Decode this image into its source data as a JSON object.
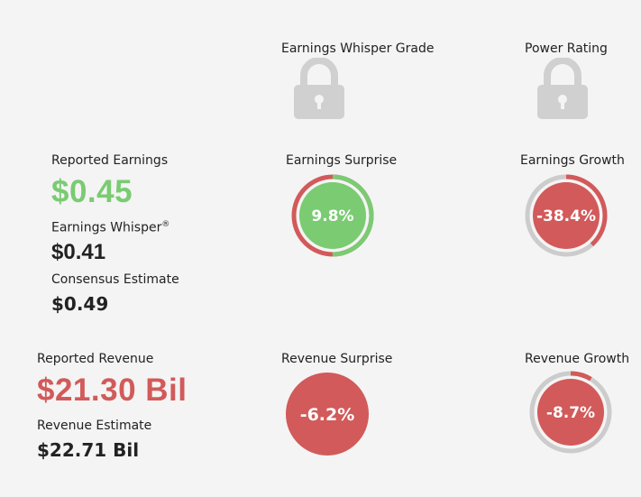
{
  "grades": {
    "whisper_grade_label": "Earnings Whisper Grade",
    "power_rating_label": "Power Rating",
    "lock_icon": "lock-icon"
  },
  "earnings": {
    "reported_label": "Reported Earnings",
    "reported_value": "$0.45",
    "whisper_label": "Earnings Whisper",
    "whisper_mark": "®",
    "whisper_value": "$0.41",
    "consensus_label": "Consensus Estimate",
    "consensus_value": "$0.49",
    "surprise_label": "Earnings Surprise",
    "surprise_value": "9.8%",
    "surprise_pct": 9.8,
    "growth_label": "Earnings Growth",
    "growth_value": "-38.4%",
    "growth_pct": -38.4
  },
  "revenue": {
    "reported_label": "Reported Revenue",
    "reported_value": "$21.30 Bil",
    "estimate_label": "Revenue Estimate",
    "estimate_value": "$22.71 Bil",
    "surprise_label": "Revenue Surprise",
    "surprise_value": "-6.2%",
    "surprise_pct": -6.2,
    "growth_label": "Revenue Growth",
    "growth_value": "-8.7%",
    "growth_pct": -8.7
  },
  "colors": {
    "green": "#7acb72",
    "red": "#d25a5a",
    "gray": "#cccccc",
    "lock": "#d0d0d0"
  }
}
